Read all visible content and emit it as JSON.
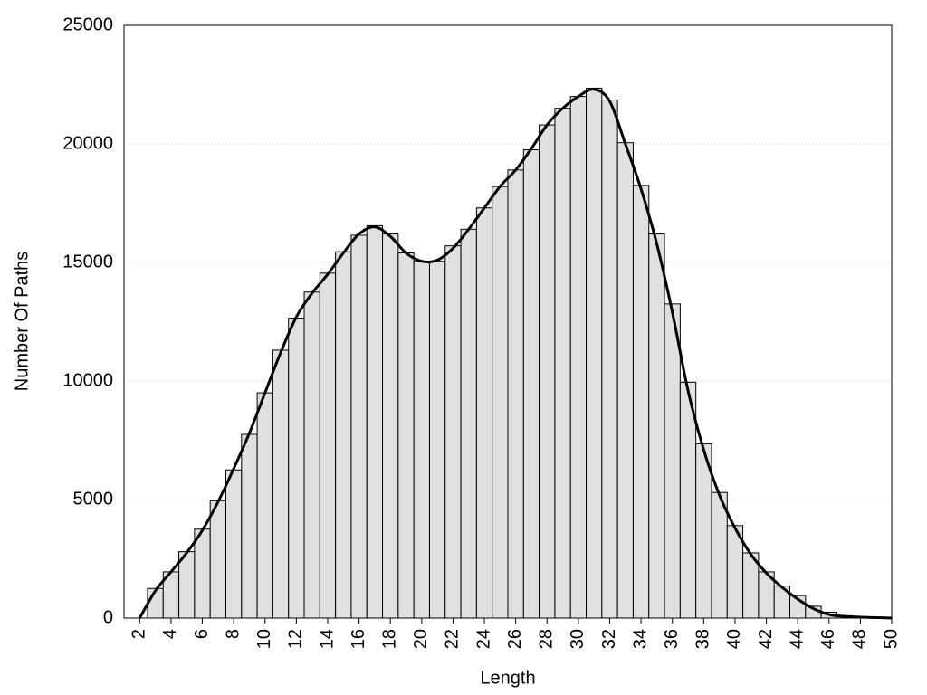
{
  "chart_data": {
    "type": "histogram",
    "xlabel": "Length",
    "ylabel": "Number Of Paths",
    "bins": [
      2.5,
      3.5,
      4.5,
      5.5,
      6.5,
      7.5,
      8.5,
      9.5,
      10.5,
      11.5,
      12.5,
      13.5,
      14.5,
      15.5,
      16.5,
      17.5,
      18.5,
      19.5,
      20.5,
      21.5,
      22.5,
      23.5,
      24.5,
      25.5,
      26.5,
      27.5,
      28.5,
      29.5,
      30.5,
      31.5,
      32.5,
      33.5,
      34.5,
      35.5,
      36.5,
      37.5,
      38.5,
      39.5,
      40.5,
      41.5,
      42.5,
      43.5,
      44.5,
      45.5,
      46.5,
      47.5,
      48.5,
      49.5
    ],
    "values": [
      1250,
      1950,
      2800,
      3750,
      4950,
      6250,
      7750,
      9500,
      11300,
      12650,
      13750,
      14550,
      15450,
      16150,
      16550,
      16200,
      15400,
      15050,
      15050,
      15700,
      16400,
      17300,
      18200,
      18900,
      19750,
      20800,
      21500,
      22000,
      22350,
      21850,
      20050,
      18250,
      16200,
      13250,
      9950,
      7350,
      5300,
      3900,
      2750,
      1950,
      1350,
      950,
      500,
      250,
      100,
      50,
      30
    ],
    "color": "#e0e0e0",
    "overlay": {
      "type": "line",
      "color": "#000000",
      "x": [
        2,
        3,
        4,
        5,
        6,
        7,
        8,
        9,
        10,
        11,
        12,
        13,
        14,
        15,
        16,
        17,
        18,
        19,
        20,
        21,
        22,
        23,
        24,
        25,
        26,
        27,
        28,
        29,
        30,
        31,
        32,
        33,
        34,
        35,
        36,
        37,
        38,
        39,
        40,
        41,
        42,
        43,
        44,
        45,
        46,
        47,
        48,
        49,
        50
      ],
      "values": [
        0,
        1150,
        1950,
        2750,
        3700,
        4900,
        6300,
        7800,
        9500,
        11200,
        12700,
        13700,
        14500,
        15400,
        16200,
        16500,
        16100,
        15400,
        15050,
        15100,
        15600,
        16400,
        17300,
        18200,
        18900,
        19800,
        20800,
        21500,
        22000,
        22300,
        21800,
        20000,
        18100,
        15800,
        12900,
        9600,
        7100,
        5200,
        3800,
        2700,
        1900,
        1300,
        800,
        400,
        150,
        70,
        40,
        20,
        0
      ]
    },
    "xlim": [
      1,
      50
    ],
    "ylim": [
      0,
      25000
    ],
    "xticks": [
      2,
      4,
      6,
      8,
      10,
      12,
      14,
      16,
      18,
      20,
      22,
      24,
      26,
      28,
      30,
      32,
      34,
      36,
      38,
      40,
      42,
      44,
      46,
      48,
      50
    ],
    "yticks": [
      0,
      5000,
      10000,
      15000,
      20000,
      25000
    ],
    "grid": true
  }
}
